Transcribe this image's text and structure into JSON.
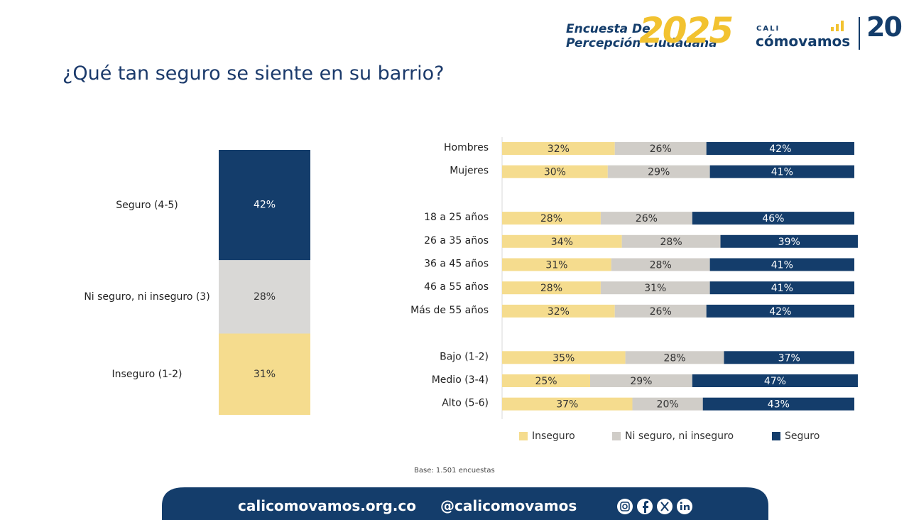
{
  "header": {
    "survey_line1": "Encuesta De",
    "survey_line2": "Percepción Ciudadana",
    "year": "2025",
    "brand_small": "CALI",
    "brand": "cómovamos",
    "anniversary": "20"
  },
  "title": "¿Qué tan seguro se siente en su barrio?",
  "chart_data": [
    {
      "type": "bar",
      "stacked": true,
      "categories": [
        "Inseguro (1-2)",
        "Ni seguro, ni inseguro (3)",
        "Seguro (4-5)"
      ],
      "values": [
        31,
        28,
        42
      ],
      "value_labels": [
        "31%",
        "28%",
        "42%"
      ],
      "colors": [
        "#f5dc8e",
        "#d9d8d6",
        "#143d6b"
      ]
    },
    {
      "type": "bar",
      "orientation": "horizontal",
      "stacked": true,
      "xlim": [
        0,
        100
      ],
      "legend": "bottom",
      "categories": [
        "Hombres",
        "Mujeres",
        null,
        "18 a 25 años",
        "26 a 35 años",
        "36 a 45 años",
        "46 a 55 años",
        "Más de 55 años",
        null,
        "Bajo (1-2)",
        "Medio (3-4)",
        "Alto (5-6)"
      ],
      "series": [
        {
          "name": "Inseguro",
          "color": "#f5dc8e",
          "values": [
            32,
            30,
            null,
            28,
            34,
            31,
            28,
            32,
            null,
            35,
            25,
            37
          ],
          "value_labels": [
            "32%",
            "30%",
            null,
            "28%",
            "34%",
            "31%",
            "28%",
            "32%",
            null,
            "35%",
            "25%",
            "37%"
          ]
        },
        {
          "name": "Ni seguro, ni inseguro",
          "color": "#d0cdc8",
          "values": [
            26,
            29,
            null,
            26,
            28,
            28,
            31,
            26,
            null,
            28,
            29,
            20
          ],
          "value_labels": [
            "26%",
            "29%",
            null,
            "26%",
            "28%",
            "28%",
            "31%",
            "26%",
            null,
            "28%",
            "29%",
            "20%"
          ]
        },
        {
          "name": "Seguro",
          "color": "#143d6b",
          "values": [
            42,
            41,
            null,
            46,
            39,
            41,
            41,
            42,
            null,
            37,
            47,
            43
          ],
          "value_labels": [
            "42%",
            "41%",
            null,
            "46%",
            "39%",
            "41%",
            "41%",
            "42%",
            null,
            "37%",
            "47%",
            "43%"
          ]
        }
      ]
    }
  ],
  "note": "Base: 1.501 encuestas",
  "footer": {
    "website": "calicomovamos.org.co",
    "handle": "@calicomovamos"
  }
}
